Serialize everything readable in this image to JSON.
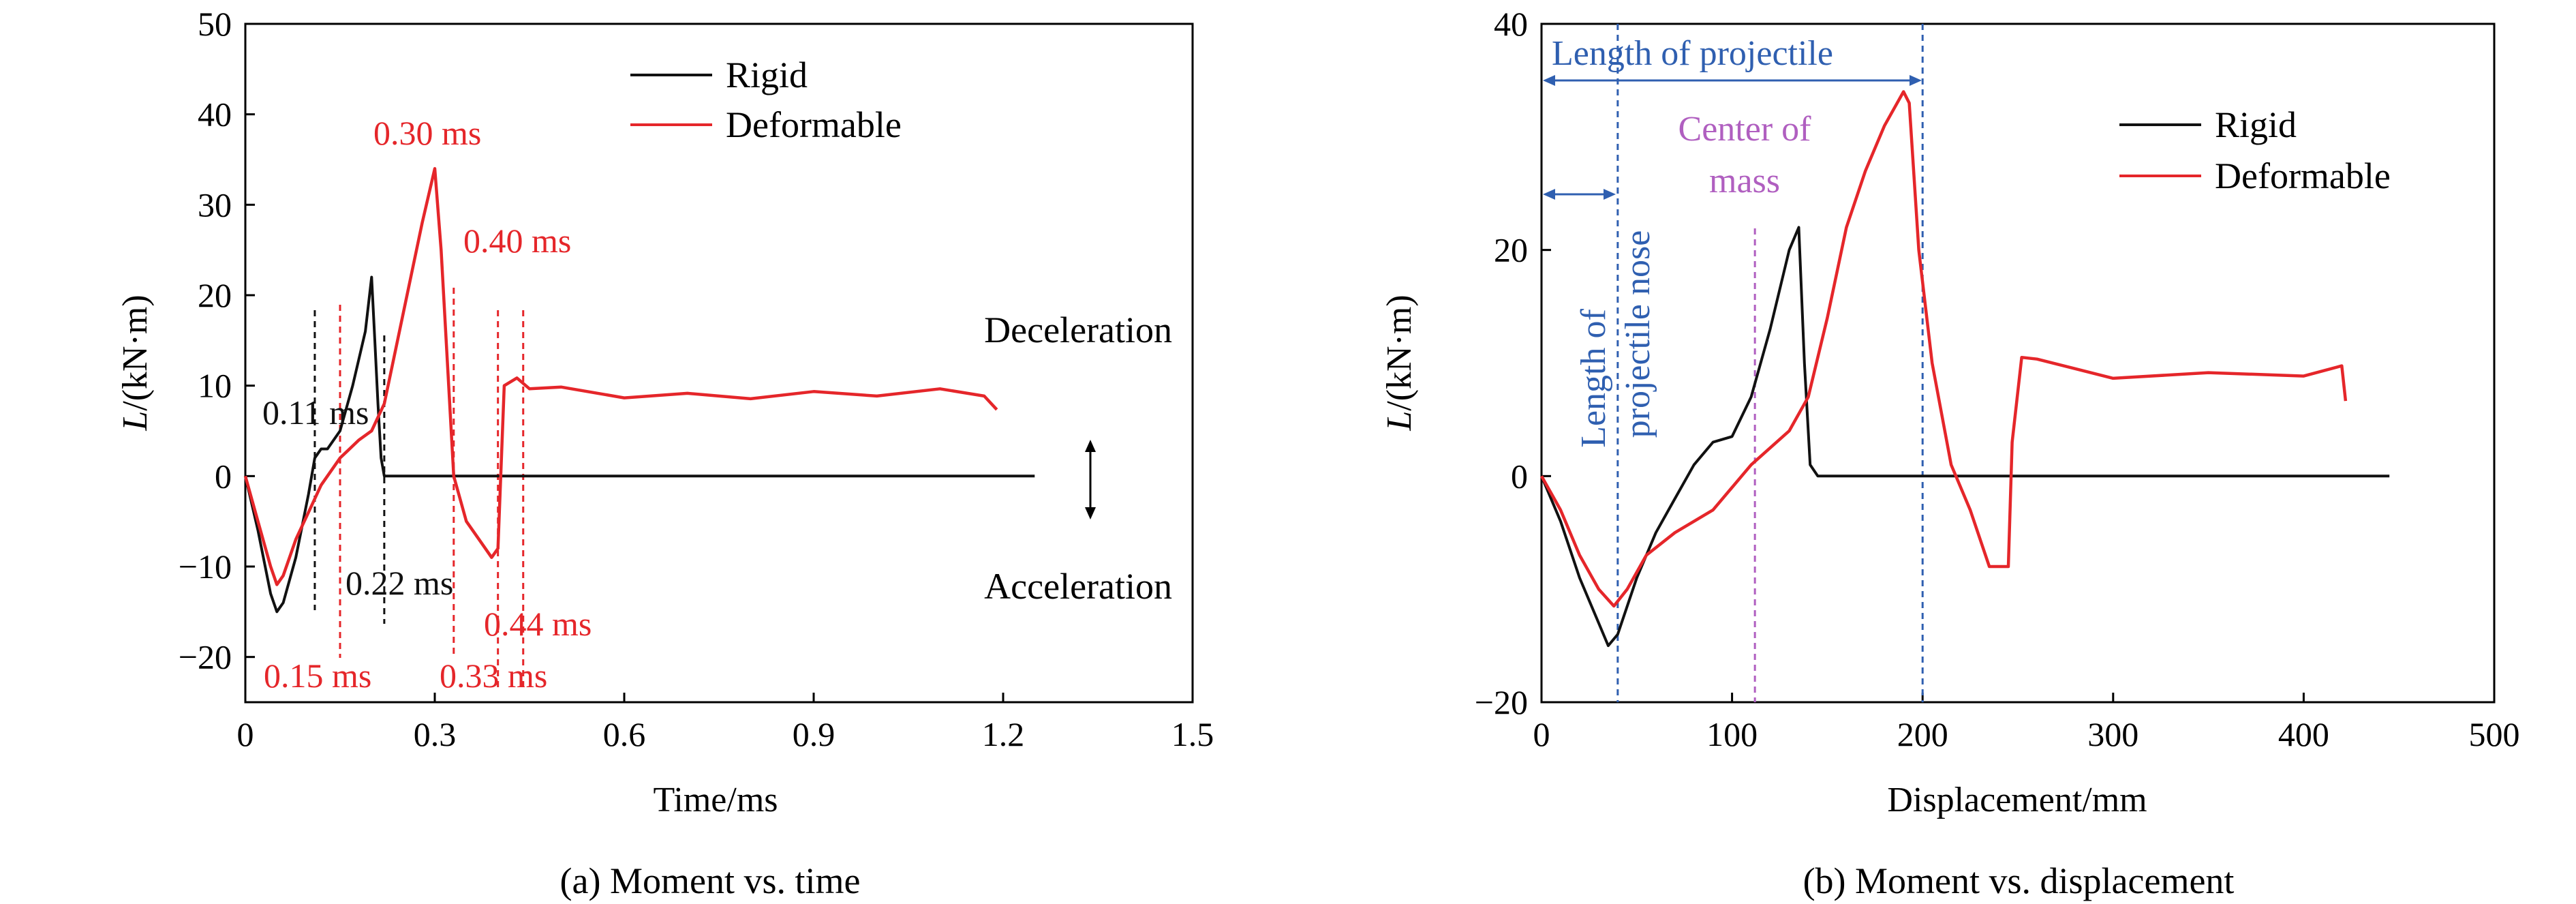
{
  "colors": {
    "rigid": "#111111",
    "deformable": "#e5262a",
    "annotation_blue": "#2f5fb0",
    "annotation_purple": "#b05fc0"
  },
  "chart_data": [
    {
      "type": "line",
      "caption": "(a) Moment vs. time",
      "xlabel": "Time/ms",
      "ylabel_italic": "L",
      "ylabel_rest": "/(kN·m)",
      "xlim": [
        0,
        1.5
      ],
      "ylim": [
        -25,
        50
      ],
      "xticks": [
        0,
        0.3,
        0.6,
        0.9,
        1.2,
        1.5
      ],
      "xtick_labels": [
        "0",
        "0.3",
        "0.6",
        "0.9",
        "1.2",
        "1.5"
      ],
      "yticks": [
        -20,
        -10,
        0,
        10,
        20,
        30,
        40,
        50
      ],
      "ytick_labels": [
        "−20",
        "−10",
        "0",
        "10",
        "20",
        "30",
        "40",
        "50"
      ],
      "legend": [
        "Rigid",
        "Deformable"
      ],
      "legend_position": "top-right",
      "series": [
        {
          "name": "Rigid",
          "x": [
            0,
            0.02,
            0.04,
            0.05,
            0.06,
            0.08,
            0.1,
            0.11,
            0.12,
            0.13,
            0.15,
            0.17,
            0.19,
            0.2,
            0.205,
            0.21,
            0.215,
            0.22,
            0.25,
            0.4,
            0.7,
            1.0,
            1.25
          ],
          "y": [
            0,
            -6,
            -13,
            -15,
            -14,
            -9,
            -2,
            2,
            3,
            3,
            5,
            10,
            16,
            22,
            15,
            8,
            2,
            0,
            0,
            0,
            0,
            0,
            0
          ]
        },
        {
          "name": "Deformable",
          "x": [
            0,
            0.02,
            0.04,
            0.05,
            0.06,
            0.08,
            0.1,
            0.12,
            0.15,
            0.18,
            0.2,
            0.22,
            0.25,
            0.28,
            0.3,
            0.31,
            0.33,
            0.35,
            0.37,
            0.39,
            0.4,
            0.41,
            0.43,
            0.45,
            0.5,
            0.6,
            0.7,
            0.8,
            0.9,
            1.0,
            1.1,
            1.17,
            1.19
          ],
          "y": [
            0,
            -5,
            -10,
            -12,
            -11,
            -7,
            -4,
            -1,
            2,
            4,
            5,
            8,
            18,
            28,
            34,
            25,
            0,
            -5,
            -7,
            -9,
            -8,
            10,
            10.5,
            10,
            9.5,
            9,
            8.8,
            8.9,
            9,
            9.2,
            9.3,
            9.2,
            7
          ]
        }
      ],
      "annotations": {
        "t_011": "0.11 ms",
        "t_022": "0.22 ms",
        "t_015": "0.15 ms",
        "t_030": "0.30 ms",
        "t_033": "0.33 ms",
        "t_040": "0.40 ms",
        "t_044": "0.44 ms",
        "deceleration": "Deceleration",
        "acceleration": "Acceleration"
      },
      "marker_lines": [
        {
          "x": 0.11,
          "color": "rigid"
        },
        {
          "x": 0.22,
          "color": "rigid"
        },
        {
          "x": 0.15,
          "color": "deformable"
        },
        {
          "x": 0.33,
          "color": "deformable"
        },
        {
          "x": 0.4,
          "color": "deformable"
        },
        {
          "x": 0.44,
          "color": "deformable"
        }
      ]
    },
    {
      "type": "line",
      "caption": "(b) Moment vs. displacement",
      "xlabel": "Displacement/mm",
      "ylabel_italic": "L",
      "ylabel_rest": "/(kN·m)",
      "xlim": [
        0,
        500
      ],
      "ylim": [
        -20,
        40
      ],
      "xticks": [
        0,
        100,
        200,
        300,
        400,
        500
      ],
      "xtick_labels": [
        "0",
        "100",
        "200",
        "300",
        "400",
        "500"
      ],
      "yticks": [
        -20,
        0,
        20,
        40
      ],
      "ytick_labels": [
        "−20",
        "0",
        "20",
        "40"
      ],
      "legend": [
        "Rigid",
        "Deformable"
      ],
      "legend_position": "top-right",
      "series": [
        {
          "name": "Rigid",
          "x": [
            0,
            10,
            20,
            30,
            35,
            40,
            50,
            60,
            70,
            80,
            90,
            100,
            110,
            120,
            130,
            135,
            138,
            141,
            145,
            150,
            200,
            300,
            400,
            445
          ],
          "y": [
            0,
            -4,
            -9,
            -13,
            -15,
            -14,
            -9,
            -5,
            -2,
            1,
            3,
            3.5,
            7,
            13,
            20,
            22,
            10,
            1,
            0,
            0,
            0,
            0,
            0,
            0
          ]
        },
        {
          "name": "Deformable",
          "x": [
            0,
            10,
            20,
            30,
            38,
            45,
            55,
            70,
            90,
            110,
            130,
            140,
            150,
            160,
            170,
            180,
            190,
            193,
            198,
            205,
            215,
            225,
            235,
            245,
            247,
            252,
            260,
            300,
            350,
            400,
            420,
            422
          ],
          "y": [
            0,
            -3,
            -7,
            -10,
            -11.5,
            -10,
            -7,
            -5,
            -3,
            1,
            4,
            7,
            14,
            22,
            27,
            31,
            34,
            33,
            20,
            10,
            1,
            -3,
            -8,
            -8,
            3,
            10.5,
            10,
            9,
            8.8,
            9.2,
            9.4,
            7
          ]
        }
      ],
      "annotations": {
        "length_projectile": "Length of projectile",
        "center_mass_line1": "Center of",
        "center_mass_line2": "mass",
        "nose_line1": "Length of",
        "nose_line2": "projectile nose"
      },
      "marker_lines": [
        {
          "x": 40,
          "color": "annotation_blue"
        },
        {
          "x": 200,
          "color": "annotation_blue"
        },
        {
          "x": 112,
          "color": "annotation_purple"
        }
      ]
    }
  ]
}
